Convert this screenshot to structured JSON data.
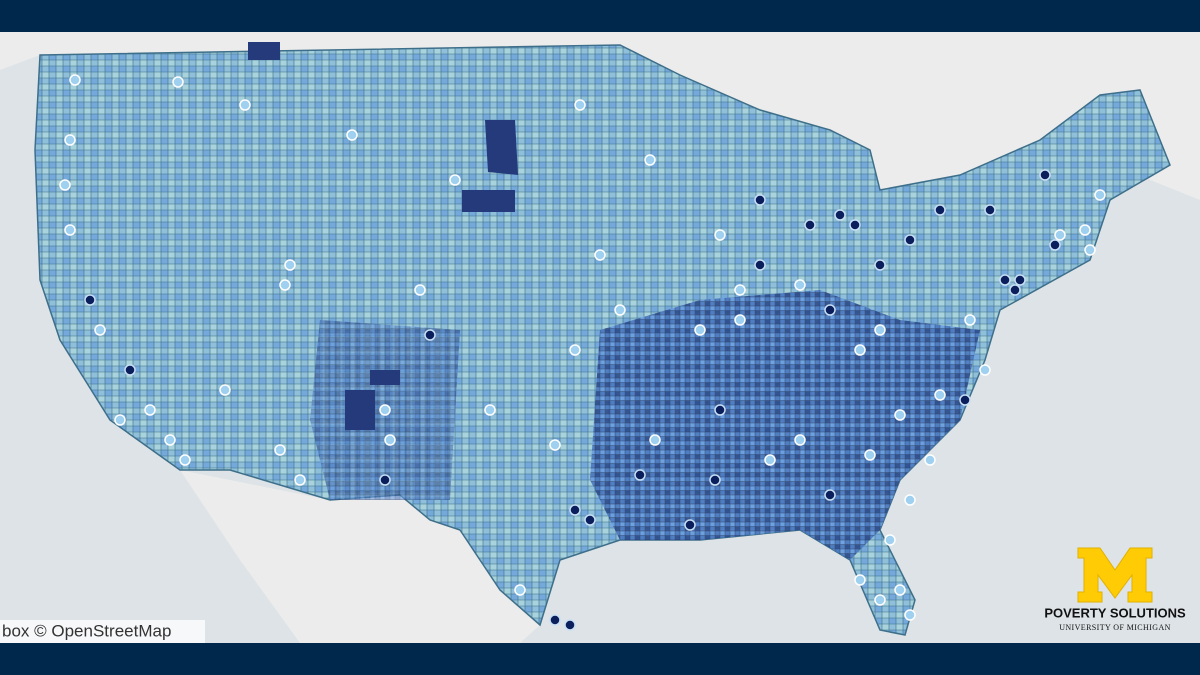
{
  "attribution": "box © OpenStreetMap",
  "logo": {
    "title": "POVERTY SOLUTIONS",
    "subtitle": "UNIVERSITY OF MICHIGAN"
  }
}
